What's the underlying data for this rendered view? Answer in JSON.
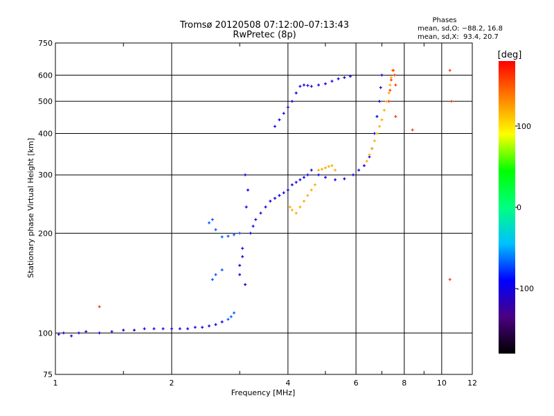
{
  "chart_data": {
    "type": "scatter",
    "title": "Tromsø 20120508 07:12:00–07:13:43",
    "subtitle": "RwPretec (8p)",
    "stats": {
      "heading": "Phases",
      "line1": "mean, sd,O: −88.2, 16.8",
      "line2": "mean, sd,X:  93.4, 20.7"
    },
    "xlabel": "Frequency [MHz]",
    "ylabel": "Stationary phase Virtual Height [km]",
    "xscale": "log",
    "yscale": "log",
    "xlim": [
      1,
      12
    ],
    "ylim": [
      75,
      750
    ],
    "xticks": [
      1,
      2,
      4,
      6,
      8,
      10,
      12
    ],
    "yticks": [
      75,
      100,
      200,
      300,
      400,
      500,
      600,
      750
    ],
    "grid": true,
    "colorbar": {
      "label": "[deg]",
      "range": [
        -180,
        180
      ],
      "ticks": [
        100,
        0,
        -100
      ],
      "colors": [
        "#000000",
        "#4b0082",
        "#0000ff",
        "#00c0ff",
        "#00ff80",
        "#00ff00",
        "#ffff00",
        "#ff8000",
        "#ff0000"
      ]
    },
    "series": [
      {
        "phase": -100,
        "points": [
          [
            1.02,
            99
          ],
          [
            1.05,
            100
          ],
          [
            1.1,
            98
          ],
          [
            1.15,
            100
          ],
          [
            1.2,
            101
          ],
          [
            1.3,
            100
          ],
          [
            1.4,
            101
          ],
          [
            1.5,
            102
          ],
          [
            1.6,
            102
          ],
          [
            1.7,
            103
          ],
          [
            1.8,
            103
          ],
          [
            1.9,
            103
          ],
          [
            2.0,
            103
          ],
          [
            2.1,
            103
          ],
          [
            2.2,
            103
          ],
          [
            2.3,
            104
          ],
          [
            2.4,
            104
          ],
          [
            2.5,
            105
          ],
          [
            2.6,
            106
          ],
          [
            2.7,
            108
          ],
          [
            3.0,
            150
          ],
          [
            3.0,
            160
          ],
          [
            3.05,
            170
          ],
          [
            3.05,
            180
          ],
          [
            3.1,
            140
          ],
          [
            3.1,
            300
          ],
          [
            3.12,
            240
          ],
          [
            3.15,
            270
          ],
          [
            3.2,
            200
          ],
          [
            3.25,
            210
          ],
          [
            3.3,
            220
          ],
          [
            3.4,
            230
          ],
          [
            3.5,
            240
          ],
          [
            3.6,
            250
          ],
          [
            3.7,
            255
          ],
          [
            3.8,
            260
          ],
          [
            3.9,
            265
          ],
          [
            4.0,
            270
          ],
          [
            4.1,
            280
          ],
          [
            4.2,
            285
          ],
          [
            4.3,
            290
          ],
          [
            4.4,
            295
          ],
          [
            4.5,
            300
          ],
          [
            4.6,
            310
          ],
          [
            4.8,
            300
          ],
          [
            5.0,
            295
          ],
          [
            5.3,
            290
          ],
          [
            5.6,
            292
          ],
          [
            5.9,
            300
          ],
          [
            6.1,
            310
          ],
          [
            6.3,
            320
          ],
          [
            6.5,
            340
          ],
          [
            6.6,
            360
          ],
          [
            6.7,
            400
          ],
          [
            6.8,
            450
          ],
          [
            6.9,
            500
          ],
          [
            6.95,
            550
          ],
          [
            7.0,
            600
          ],
          [
            3.7,
            420
          ],
          [
            3.8,
            440
          ],
          [
            3.9,
            460
          ],
          [
            4.0,
            480
          ],
          [
            4.1,
            500
          ],
          [
            4.2,
            530
          ],
          [
            4.3,
            555
          ],
          [
            4.4,
            560
          ],
          [
            4.5,
            558
          ],
          [
            4.6,
            555
          ],
          [
            4.8,
            560
          ],
          [
            5.0,
            565
          ],
          [
            5.2,
            575
          ],
          [
            5.4,
            585
          ],
          [
            5.6,
            590
          ],
          [
            5.8,
            595
          ]
        ]
      },
      {
        "phase": -70,
        "points": [
          [
            2.5,
            215
          ],
          [
            2.55,
            220
          ],
          [
            2.6,
            205
          ],
          [
            2.7,
            195
          ],
          [
            2.8,
            196
          ],
          [
            2.9,
            198
          ],
          [
            3.0,
            200
          ],
          [
            2.55,
            145
          ],
          [
            2.6,
            150
          ],
          [
            2.7,
            155
          ],
          [
            2.8,
            110
          ],
          [
            2.85,
            112
          ],
          [
            2.9,
            115
          ]
        ]
      },
      {
        "phase": 120,
        "points": [
          [
            4.05,
            240
          ],
          [
            4.1,
            235
          ],
          [
            4.2,
            230
          ],
          [
            4.3,
            240
          ],
          [
            4.4,
            250
          ],
          [
            4.5,
            260
          ],
          [
            4.6,
            270
          ],
          [
            4.7,
            280
          ],
          [
            4.8,
            310
          ],
          [
            4.9,
            312
          ],
          [
            5.0,
            315
          ],
          [
            5.1,
            318
          ],
          [
            5.2,
            320
          ],
          [
            5.3,
            310
          ],
          [
            6.4,
            330
          ],
          [
            6.5,
            345
          ],
          [
            6.6,
            360
          ],
          [
            6.7,
            380
          ],
          [
            6.8,
            400
          ],
          [
            6.9,
            420
          ],
          [
            7.0,
            440
          ],
          [
            7.1,
            470
          ],
          [
            7.2,
            500
          ],
          [
            7.3,
            530
          ],
          [
            7.35,
            560
          ],
          [
            7.4,
            590
          ],
          [
            7.45,
            620
          ]
        ]
      },
      {
        "phase": 160,
        "points": [
          [
            7.3,
            500
          ],
          [
            7.35,
            540
          ],
          [
            7.4,
            580
          ],
          [
            7.5,
            620
          ],
          [
            7.55,
            600
          ],
          [
            7.6,
            560
          ],
          [
            7.6,
            450
          ],
          [
            10.5,
            620
          ],
          [
            10.6,
            500
          ],
          [
            8.4,
            410
          ],
          [
            10.5,
            145
          ],
          [
            1.3,
            120
          ]
        ]
      }
    ]
  }
}
